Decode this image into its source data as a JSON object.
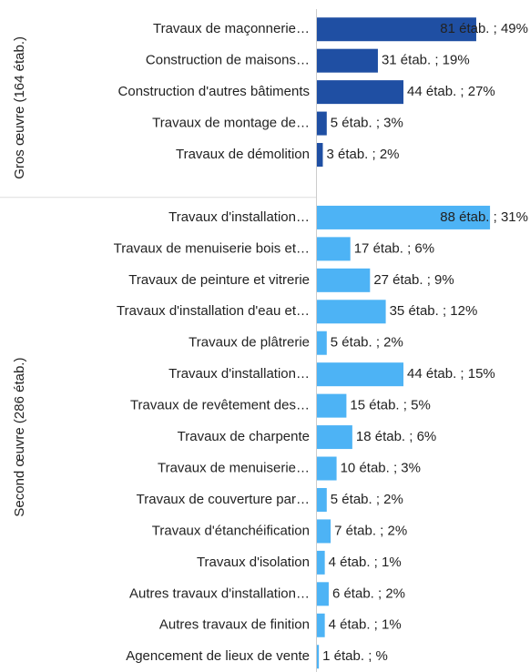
{
  "chart_data": {
    "type": "bar",
    "groups": [
      {
        "name": "Gros œuvre (164 étab.)",
        "color": "#1f4fa3",
        "categories": [
          "Travaux de maçonnerie…",
          "Construction de maisons…",
          "Construction d'autres bâtiments",
          "Travaux de montage de…",
          "Travaux de démolition"
        ],
        "values": [
          81,
          31,
          44,
          5,
          3
        ],
        "value_labels": [
          "81 étab. ; 49%",
          "31 étab. ; 19%",
          "44 étab. ; 27%",
          "5 étab. ; 3%",
          "3 étab. ; 2%"
        ]
      },
      {
        "name": "Second œuvre (286 étab.)",
        "color": "#4db3f5",
        "categories": [
          "Travaux d'installation…",
          "Travaux de menuiserie bois et…",
          "Travaux de peinture et vitrerie",
          "Travaux d'installation d'eau et…",
          "Travaux de plâtrerie",
          "Travaux d'installation…",
          "Travaux de revêtement des…",
          "Travaux de charpente",
          "Travaux de menuiserie…",
          "Travaux de couverture par…",
          "Travaux d'étanchéification",
          "Travaux d'isolation",
          "Autres travaux d'installation…",
          "Autres travaux de finition",
          "Agencement de lieux de vente"
        ],
        "values": [
          88,
          17,
          27,
          35,
          5,
          44,
          15,
          18,
          10,
          5,
          7,
          4,
          6,
          4,
          1
        ],
        "value_labels": [
          "88 étab. ; 31%",
          "17 étab. ; 6%",
          "27 étab. ; 9%",
          "35 étab. ; 12%",
          "5 étab. ; 2%",
          "44 étab. ; 15%",
          "15 étab. ; 5%",
          "18 étab. ; 6%",
          "10 étab. ; 3%",
          "5 étab. ; 2%",
          "7 étab. ; 2%",
          "4 étab. ; 1%",
          "6 étab. ; 2%",
          "4 étab. ; 1%",
          "1 étab. ; %"
        ]
      }
    ]
  }
}
